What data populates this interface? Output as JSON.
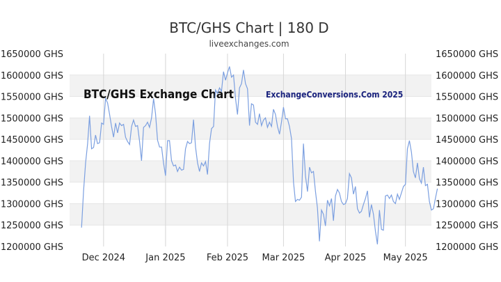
{
  "chart_data": {
    "type": "line",
    "title": "BTC/GHS Chart | 180 D",
    "subtitle": "liveexchanges.com",
    "watermarks": [
      "BTC/GHS Exchange Chart",
      "ExchangeConversions.Com 2025"
    ],
    "ylim": [
      1200000,
      1650000
    ],
    "y_ticks": [
      {
        "value": 1650000,
        "label": "1650000 GHS"
      },
      {
        "value": 1600000,
        "label": "1600000 GHS"
      },
      {
        "value": 1550000,
        "label": "1550000 GHS"
      },
      {
        "value": 1500000,
        "label": "1500000 GHS"
      },
      {
        "value": 1450000,
        "label": "1450000 GHS"
      },
      {
        "value": 1400000,
        "label": "1400000 GHS"
      },
      {
        "value": 1350000,
        "label": "1350000 GHS"
      },
      {
        "value": 1300000,
        "label": "1300000 GHS"
      },
      {
        "value": 1250000,
        "label": "1250000 GHS"
      },
      {
        "value": 1200000,
        "label": "1200000 GHS"
      }
    ],
    "x_ticks": [
      {
        "date": "2024-12-01",
        "label": "Dec 2024"
      },
      {
        "date": "2025-01-01",
        "label": "Jan 2025"
      },
      {
        "date": "2025-02-01",
        "label": "Feb 2025"
      },
      {
        "date": "2025-03-01",
        "label": "Mar 2025"
      },
      {
        "date": "2025-04-01",
        "label": "Apr 2025"
      },
      {
        "date": "2025-05-01",
        "label": "May 2025"
      }
    ],
    "x_range": [
      "2024-11-14",
      "2025-05-14"
    ],
    "grid": "horizontal bands",
    "series": [
      {
        "color": "#7b9fe0",
        "points": [
          [
            "2024-11-20",
            1244000
          ],
          [
            "2024-11-21",
            1330000
          ],
          [
            "2024-11-22",
            1395000
          ],
          [
            "2024-11-23",
            1440000
          ],
          [
            "2024-11-24",
            1505000
          ],
          [
            "2024-11-25",
            1428000
          ],
          [
            "2024-11-26",
            1431000
          ],
          [
            "2024-11-27",
            1460000
          ],
          [
            "2024-11-28",
            1440000
          ],
          [
            "2024-11-29",
            1442000
          ],
          [
            "2024-11-30",
            1488000
          ],
          [
            "2024-12-01",
            1485000
          ],
          [
            "2024-12-02",
            1545000
          ],
          [
            "2024-12-03",
            1535000
          ],
          [
            "2024-12-04",
            1508000
          ],
          [
            "2024-12-05",
            1480000
          ],
          [
            "2024-12-06",
            1455000
          ],
          [
            "2024-12-07",
            1488000
          ],
          [
            "2024-12-08",
            1465000
          ],
          [
            "2024-12-09",
            1488000
          ],
          [
            "2024-12-10",
            1482000
          ],
          [
            "2024-12-11",
            1485000
          ],
          [
            "2024-12-12",
            1455000
          ],
          [
            "2024-12-13",
            1445000
          ],
          [
            "2024-12-14",
            1438000
          ],
          [
            "2024-12-15",
            1480000
          ],
          [
            "2024-12-16",
            1495000
          ],
          [
            "2024-12-17",
            1480000
          ],
          [
            "2024-12-18",
            1482000
          ],
          [
            "2024-12-19",
            1445000
          ],
          [
            "2024-12-20",
            1400000
          ],
          [
            "2024-12-21",
            1478000
          ],
          [
            "2024-12-22",
            1482000
          ],
          [
            "2024-12-23",
            1490000
          ],
          [
            "2024-12-24",
            1478000
          ],
          [
            "2024-12-25",
            1500000
          ],
          [
            "2024-12-26",
            1545000
          ],
          [
            "2024-12-27",
            1510000
          ],
          [
            "2024-12-28",
            1448000
          ],
          [
            "2024-12-29",
            1432000
          ],
          [
            "2024-12-30",
            1432000
          ],
          [
            "2024-12-31",
            1395000
          ],
          [
            "2025-01-01",
            1365000
          ],
          [
            "2025-01-02",
            1447000
          ],
          [
            "2025-01-03",
            1447000
          ],
          [
            "2025-01-04",
            1400000
          ],
          [
            "2025-01-05",
            1388000
          ],
          [
            "2025-01-06",
            1390000
          ],
          [
            "2025-01-07",
            1375000
          ],
          [
            "2025-01-08",
            1385000
          ],
          [
            "2025-01-09",
            1378000
          ],
          [
            "2025-01-10",
            1380000
          ],
          [
            "2025-01-11",
            1428000
          ],
          [
            "2025-01-12",
            1445000
          ],
          [
            "2025-01-13",
            1440000
          ],
          [
            "2025-01-14",
            1442000
          ],
          [
            "2025-01-15",
            1496000
          ],
          [
            "2025-01-16",
            1432000
          ],
          [
            "2025-01-17",
            1395000
          ],
          [
            "2025-01-18",
            1375000
          ],
          [
            "2025-01-19",
            1395000
          ],
          [
            "2025-01-20",
            1388000
          ],
          [
            "2025-01-21",
            1398000
          ],
          [
            "2025-01-22",
            1368000
          ],
          [
            "2025-01-23",
            1440000
          ],
          [
            "2025-01-24",
            1475000
          ],
          [
            "2025-01-25",
            1480000
          ],
          [
            "2025-01-26",
            1565000
          ],
          [
            "2025-01-27",
            1557000
          ],
          [
            "2025-01-28",
            1570000
          ],
          [
            "2025-01-29",
            1562000
          ],
          [
            "2025-01-30",
            1608000
          ],
          [
            "2025-01-31",
            1588000
          ],
          [
            "2025-02-01",
            1605000
          ],
          [
            "2025-02-02",
            1620000
          ],
          [
            "2025-02-03",
            1595000
          ],
          [
            "2025-02-04",
            1600000
          ],
          [
            "2025-02-05",
            1545000
          ],
          [
            "2025-02-06",
            1508000
          ],
          [
            "2025-02-07",
            1570000
          ],
          [
            "2025-02-08",
            1580000
          ],
          [
            "2025-02-09",
            1612000
          ],
          [
            "2025-02-10",
            1580000
          ],
          [
            "2025-02-11",
            1568000
          ],
          [
            "2025-02-12",
            1482000
          ],
          [
            "2025-02-13",
            1533000
          ],
          [
            "2025-02-14",
            1530000
          ],
          [
            "2025-02-15",
            1490000
          ],
          [
            "2025-02-16",
            1485000
          ],
          [
            "2025-02-17",
            1510000
          ],
          [
            "2025-02-18",
            1482000
          ],
          [
            "2025-02-19",
            1495000
          ],
          [
            "2025-02-20",
            1500000
          ],
          [
            "2025-02-21",
            1478000
          ],
          [
            "2025-02-22",
            1490000
          ],
          [
            "2025-02-23",
            1480000
          ],
          [
            "2025-02-24",
            1520000
          ],
          [
            "2025-02-25",
            1508000
          ],
          [
            "2025-02-26",
            1480000
          ],
          [
            "2025-02-27",
            1462000
          ],
          [
            "2025-02-28",
            1490000
          ],
          [
            "2025-03-01",
            1525000
          ],
          [
            "2025-03-02",
            1498000
          ],
          [
            "2025-03-03",
            1498000
          ],
          [
            "2025-03-04",
            1480000
          ],
          [
            "2025-03-05",
            1452000
          ],
          [
            "2025-03-06",
            1350000
          ],
          [
            "2025-03-07",
            1305000
          ],
          [
            "2025-03-08",
            1310000
          ],
          [
            "2025-03-09",
            1308000
          ],
          [
            "2025-03-10",
            1315000
          ],
          [
            "2025-03-11",
            1440000
          ],
          [
            "2025-03-12",
            1365000
          ],
          [
            "2025-03-13",
            1328000
          ],
          [
            "2025-03-14",
            1385000
          ],
          [
            "2025-03-15",
            1372000
          ],
          [
            "2025-03-16",
            1375000
          ],
          [
            "2025-03-17",
            1328000
          ],
          [
            "2025-03-18",
            1290000
          ],
          [
            "2025-03-19",
            1212000
          ],
          [
            "2025-03-20",
            1285000
          ],
          [
            "2025-03-21",
            1275000
          ],
          [
            "2025-03-22",
            1248000
          ],
          [
            "2025-03-23",
            1308000
          ],
          [
            "2025-03-24",
            1295000
          ],
          [
            "2025-03-25",
            1312000
          ],
          [
            "2025-03-26",
            1260000
          ],
          [
            "2025-03-27",
            1318000
          ],
          [
            "2025-03-28",
            1333000
          ],
          [
            "2025-03-29",
            1325000
          ],
          [
            "2025-03-30",
            1305000
          ],
          [
            "2025-03-31",
            1298000
          ],
          [
            "2025-04-01",
            1300000
          ],
          [
            "2025-04-02",
            1312000
          ],
          [
            "2025-04-03",
            1370000
          ],
          [
            "2025-04-04",
            1360000
          ],
          [
            "2025-04-05",
            1322000
          ],
          [
            "2025-04-06",
            1340000
          ],
          [
            "2025-04-07",
            1288000
          ],
          [
            "2025-04-08",
            1278000
          ],
          [
            "2025-04-09",
            1282000
          ],
          [
            "2025-04-10",
            1298000
          ],
          [
            "2025-04-11",
            1312000
          ],
          [
            "2025-04-12",
            1330000
          ],
          [
            "2025-04-13",
            1268000
          ],
          [
            "2025-04-14",
            1298000
          ],
          [
            "2025-04-15",
            1275000
          ],
          [
            "2025-04-16",
            1235000
          ],
          [
            "2025-04-17",
            1205000
          ],
          [
            "2025-04-18",
            1285000
          ],
          [
            "2025-04-19",
            1240000
          ],
          [
            "2025-04-20",
            1238000
          ],
          [
            "2025-04-21",
            1318000
          ],
          [
            "2025-04-22",
            1320000
          ],
          [
            "2025-04-23",
            1312000
          ],
          [
            "2025-04-24",
            1320000
          ],
          [
            "2025-04-25",
            1305000
          ],
          [
            "2025-04-26",
            1300000
          ],
          [
            "2025-04-27",
            1322000
          ],
          [
            "2025-04-28",
            1310000
          ],
          [
            "2025-04-29",
            1325000
          ],
          [
            "2025-04-30",
            1340000
          ],
          [
            "2025-05-01",
            1345000
          ],
          [
            "2025-05-02",
            1428000
          ],
          [
            "2025-05-03",
            1447000
          ],
          [
            "2025-05-04",
            1420000
          ],
          [
            "2025-05-05",
            1375000
          ],
          [
            "2025-05-06",
            1360000
          ],
          [
            "2025-05-07",
            1395000
          ],
          [
            "2025-05-08",
            1358000
          ],
          [
            "2025-05-09",
            1348000
          ],
          [
            "2025-05-10",
            1385000
          ],
          [
            "2025-05-11",
            1342000
          ],
          [
            "2025-05-12",
            1345000
          ],
          [
            "2025-05-13",
            1305000
          ],
          [
            "2025-05-14",
            1285000
          ],
          [
            "2025-05-15",
            1288000
          ],
          [
            "2025-05-16",
            1312000
          ],
          [
            "2025-05-17",
            1335000
          ]
        ]
      }
    ]
  }
}
